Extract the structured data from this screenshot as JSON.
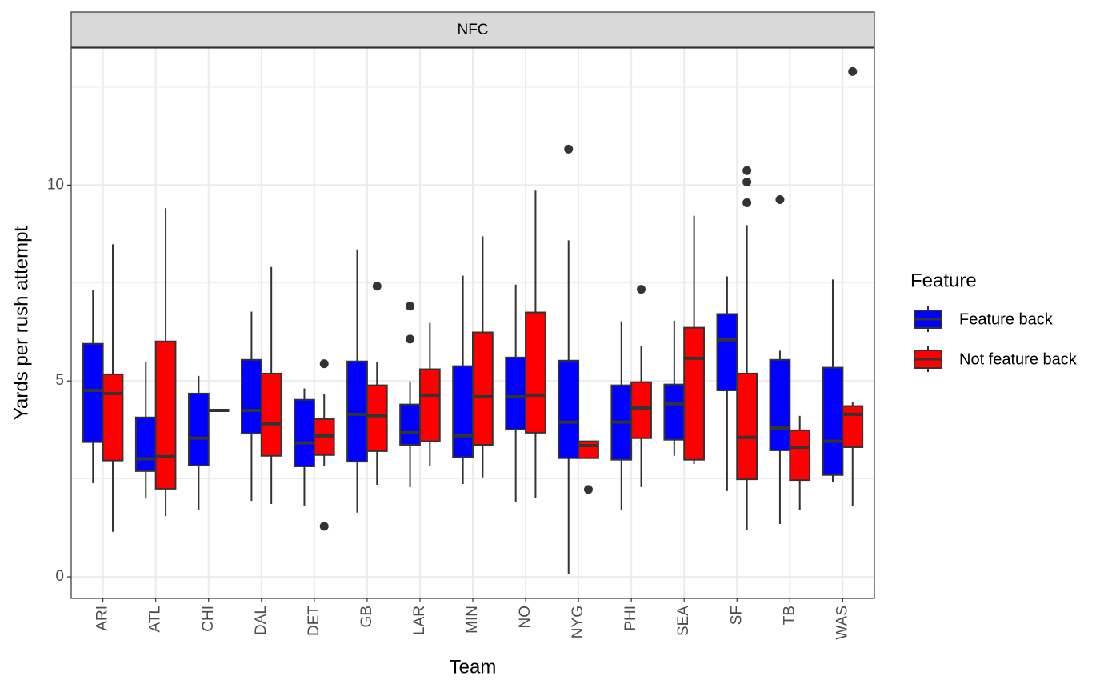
{
  "chart_data": {
    "type": "boxplot",
    "facet": "NFC",
    "xlabel": "Team",
    "ylabel": "Yards per rush attempt",
    "categories": [
      "ARI",
      "ATL",
      "CHI",
      "DAL",
      "DET",
      "GB",
      "LAR",
      "MIN",
      "NO",
      "NYG",
      "PHI",
      "SEA",
      "SF",
      "TB",
      "WAS"
    ],
    "ylim": [
      -0.55,
      13.5
    ],
    "yticks": [
      0,
      5,
      10
    ],
    "minor_yticks": [
      2.5,
      7.5,
      12.5
    ],
    "grid": true,
    "legend_title": "Feature",
    "legend_position": "right",
    "series": [
      {
        "name": "Feature back",
        "color": "#0000ff",
        "min": [
          2.39,
          2.0,
          1.7,
          1.94,
          1.82,
          1.64,
          2.29,
          2.37,
          1.92,
          0.08,
          1.7,
          3.09,
          2.19,
          1.35,
          2.43
        ],
        "q1": [
          3.44,
          2.7,
          2.84,
          3.66,
          2.82,
          2.94,
          3.37,
          3.05,
          3.76,
          3.03,
          2.99,
          3.5,
          4.76,
          3.23,
          2.6
        ],
        "median": [
          4.76,
          3.01,
          3.54,
          4.25,
          3.42,
          4.15,
          3.68,
          3.6,
          4.6,
          3.95,
          3.95,
          4.42,
          6.05,
          3.8,
          3.46
        ],
        "q3": [
          5.95,
          4.07,
          4.68,
          5.54,
          4.52,
          5.5,
          4.4,
          5.38,
          5.6,
          5.52,
          4.89,
          4.91,
          6.71,
          5.54,
          5.34
        ],
        "max": [
          7.32,
          5.48,
          5.13,
          6.77,
          4.81,
          8.36,
          4.99,
          7.69,
          7.46,
          8.59,
          6.52,
          6.54,
          7.67,
          5.77,
          7.59
        ],
        "outliers": [
          [],
          [],
          [],
          [],
          [],
          [],
          [
            6.91,
            6.07
          ],
          [],
          [],
          [
            10.92
          ],
          [],
          [],
          [],
          [
            9.63
          ],
          []
        ]
      },
      {
        "name": "Not feature back",
        "color": "#ff0000",
        "min": [
          1.15,
          1.55,
          4.22,
          1.86,
          2.84,
          2.35,
          2.82,
          2.54,
          2.02,
          3.03,
          2.29,
          2.88,
          1.19,
          1.7,
          1.82
        ],
        "q1": [
          2.97,
          2.25,
          4.23,
          3.09,
          3.11,
          3.21,
          3.46,
          3.37,
          3.68,
          3.03,
          3.54,
          2.99,
          2.49,
          2.47,
          3.31
        ],
        "median": [
          4.68,
          3.07,
          4.25,
          3.91,
          3.6,
          4.11,
          4.64,
          4.6,
          4.64,
          3.35,
          4.31,
          5.58,
          3.56,
          3.31,
          4.15
        ],
        "q3": [
          5.17,
          6.01,
          4.27,
          5.19,
          4.03,
          4.89,
          5.3,
          6.24,
          6.75,
          3.46,
          4.97,
          6.36,
          5.19,
          3.74,
          4.36
        ],
        "max": [
          8.49,
          9.41,
          4.28,
          7.91,
          4.66,
          5.48,
          6.48,
          8.69,
          9.86,
          3.46,
          5.89,
          9.22,
          8.98,
          4.11,
          4.46
        ],
        "outliers": [
          [],
          [],
          [],
          [],
          [
            5.44,
            1.29
          ],
          [
            7.42
          ],
          [],
          [],
          [],
          [
            2.23
          ],
          [
            7.34
          ],
          [],
          [
            10.37,
            10.08,
            9.55
          ],
          [],
          [
            12.9
          ]
        ]
      }
    ]
  }
}
